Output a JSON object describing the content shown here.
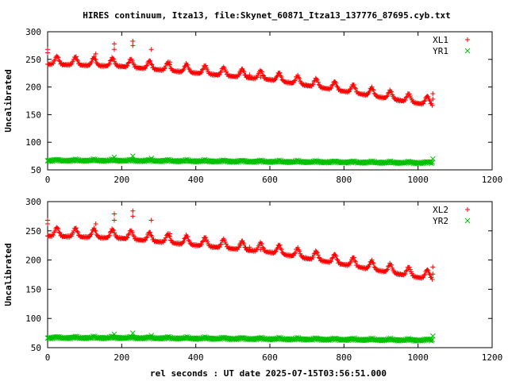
{
  "title": "HIRES continuum, Itza13, file:Skynet_60871_Itza13_137776_87695.cyb.txt",
  "xlabel": "rel seconds : UT date 2025-07-15T03:56:51.000",
  "colors": {
    "series_red": "#ff0000",
    "series_green": "#00c000",
    "axis": "#000000",
    "background": "#ffffff"
  },
  "chart_data": [
    {
      "type": "scatter",
      "panel": "top",
      "ylabel": "Uncalibrated",
      "xlim": [
        0,
        1200
      ],
      "ylim": [
        50,
        300
      ],
      "xticks": [
        0,
        200,
        400,
        600,
        800,
        1000,
        1200
      ],
      "yticks": [
        50,
        100,
        150,
        200,
        250,
        300
      ],
      "grid": false,
      "legend": "top-right",
      "series": [
        {
          "name": "XL1",
          "color": "#ff0000",
          "marker": "plus",
          "trend": [
            [
              0,
              245
            ],
            [
              200,
              241
            ],
            [
              400,
              229
            ],
            [
              600,
              217
            ],
            [
              800,
              196
            ],
            [
              1000,
              174
            ],
            [
              1040,
              171
            ]
          ],
          "bump_period_s": 50,
          "bump_height": 15,
          "x_range": [
            0,
            1040
          ],
          "outliers": [
            [
              0,
              268
            ],
            [
              0,
              262
            ],
            [
              130,
              260
            ],
            [
              180,
              278
            ],
            [
              180,
              268
            ],
            [
              230,
              283
            ],
            [
              230,
              275
            ],
            [
              280,
              268
            ],
            [
              330,
              245
            ],
            [
              520,
              225
            ],
            [
              545,
              222
            ],
            [
              575,
              218
            ],
            [
              1040,
              188
            ],
            [
              1040,
              178
            ]
          ]
        },
        {
          "name": "YR1",
          "color": "#00c000",
          "marker": "cross",
          "trend": [
            [
              0,
              67
            ],
            [
              200,
              67
            ],
            [
              400,
              66
            ],
            [
              600,
              65
            ],
            [
              800,
              64
            ],
            [
              1000,
              63
            ],
            [
              1040,
              63
            ]
          ],
          "bump_period_s": 50,
          "bump_height": 2,
          "x_range": [
            0,
            1040
          ],
          "outliers": [
            [
              180,
              73
            ],
            [
              230,
              75
            ],
            [
              280,
              71
            ],
            [
              1040,
              70
            ]
          ]
        }
      ]
    },
    {
      "type": "scatter",
      "panel": "bottom",
      "ylabel": "Uncalibrated",
      "xlabel": "rel seconds : UT date 2025-07-15T03:56:51.000",
      "xlim": [
        0,
        1200
      ],
      "ylim": [
        50,
        300
      ],
      "xticks": [
        0,
        200,
        400,
        600,
        800,
        1000,
        1200
      ],
      "yticks": [
        50,
        100,
        150,
        200,
        250,
        300
      ],
      "grid": false,
      "legend": "top-right",
      "series": [
        {
          "name": "XL2",
          "color": "#ff0000",
          "marker": "plus",
          "trend": [
            [
              0,
              245
            ],
            [
              200,
              241
            ],
            [
              400,
              229
            ],
            [
              600,
              217
            ],
            [
              800,
              196
            ],
            [
              1000,
              174
            ],
            [
              1040,
              171
            ]
          ],
          "bump_period_s": 50,
          "bump_height": 15,
          "x_range": [
            0,
            1040
          ],
          "outliers": [
            [
              0,
              268
            ],
            [
              0,
              262
            ],
            [
              130,
              262
            ],
            [
              180,
              279
            ],
            [
              180,
              268
            ],
            [
              230,
              284
            ],
            [
              230,
              275
            ],
            [
              280,
              268
            ],
            [
              330,
              245
            ],
            [
              520,
              225
            ],
            [
              545,
              222
            ],
            [
              575,
              218
            ],
            [
              1040,
              188
            ],
            [
              1040,
              176
            ]
          ]
        },
        {
          "name": "YR2",
          "color": "#00c000",
          "marker": "cross",
          "trend": [
            [
              0,
              67
            ],
            [
              200,
              67
            ],
            [
              400,
              66
            ],
            [
              600,
              65
            ],
            [
              800,
              64
            ],
            [
              1000,
              63
            ],
            [
              1040,
              63
            ]
          ],
          "bump_period_s": 50,
          "bump_height": 2,
          "x_range": [
            0,
            1040
          ],
          "outliers": [
            [
              180,
              73
            ],
            [
              230,
              75
            ],
            [
              280,
              71
            ],
            [
              1040,
              70
            ]
          ]
        }
      ]
    }
  ]
}
